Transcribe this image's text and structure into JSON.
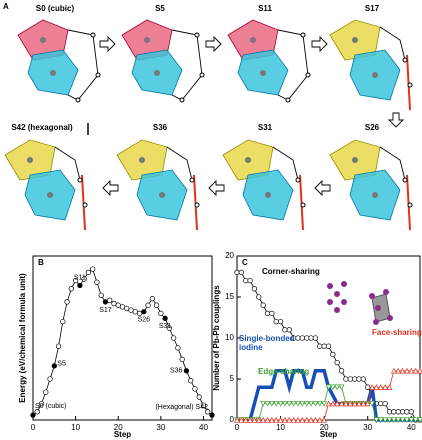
{
  "panel_a": {
    "label": "A",
    "states": [
      "S0 (cubic)",
      "S5",
      "S11",
      "S17",
      "S42 (hexagonal)",
      "S36",
      "S31",
      "S26"
    ]
  },
  "chart_data": [
    {
      "type": "line",
      "panel": "B",
      "xlabel": "Step",
      "ylabel": "Energy (eV/chemical formula unit)",
      "x": [
        0,
        1,
        2,
        3,
        4,
        5,
        6,
        7,
        8,
        9,
        10,
        11,
        12,
        13,
        14,
        15,
        16,
        17,
        18,
        19,
        20,
        21,
        22,
        23,
        24,
        25,
        26,
        27,
        28,
        29,
        30,
        31,
        32,
        33,
        34,
        35,
        36,
        37,
        38,
        39,
        40,
        41,
        42
      ],
      "values": [
        0.03,
        0.05,
        0.1,
        0.17,
        0.25,
        0.33,
        0.45,
        0.6,
        0.72,
        0.8,
        0.85,
        0.82,
        0.86,
        0.9,
        0.92,
        0.84,
        0.76,
        0.72,
        0.73,
        0.71,
        0.7,
        0.69,
        0.68,
        0.67,
        0.66,
        0.65,
        0.66,
        0.7,
        0.74,
        0.7,
        0.65,
        0.62,
        0.56,
        0.5,
        0.44,
        0.37,
        0.3,
        0.24,
        0.19,
        0.14,
        0.09,
        0.05,
        0.03
      ],
      "color": "#000000",
      "xlim": [
        0,
        42
      ],
      "xticks": [
        0,
        10,
        20,
        30,
        40
      ],
      "ylim": [
        0,
        1
      ],
      "annotations": [
        {
          "text": "S0 (cubic)",
          "x": 0
        },
        {
          "text": "S5",
          "x": 5
        },
        {
          "text": "S11",
          "x": 11
        },
        {
          "text": "S17",
          "x": 17
        },
        {
          "text": "S26",
          "x": 26
        },
        {
          "text": "S31",
          "x": 31
        },
        {
          "text": "S36",
          "x": 36
        },
        {
          "text": "(Hexagonal) S42",
          "x": 42
        }
      ]
    },
    {
      "type": "line",
      "panel": "C",
      "xlabel": "Step",
      "ylabel": "Number of Pb-Pb couplings",
      "x": [
        0,
        1,
        2,
        3,
        4,
        5,
        6,
        7,
        8,
        9,
        10,
        11,
        12,
        13,
        14,
        15,
        16,
        17,
        18,
        19,
        20,
        21,
        22,
        23,
        24,
        25,
        26,
        27,
        28,
        29,
        30,
        31,
        32,
        33,
        34,
        35,
        36,
        37,
        38,
        39,
        40,
        41,
        42
      ],
      "xlim": [
        0,
        42
      ],
      "xticks": [
        0,
        10,
        20,
        30,
        40
      ],
      "ylim": [
        0,
        20
      ],
      "yticks": [
        0,
        5,
        10,
        15,
        20
      ],
      "series": [
        {
          "name": "Corner-sharing",
          "color": "#000000",
          "marker": "circle",
          "values": [
            18,
            18,
            17,
            17,
            16,
            15,
            14,
            13,
            13,
            12,
            12,
            11,
            11,
            10,
            10,
            10,
            10,
            10,
            10,
            9,
            9,
            9,
            8,
            7,
            6,
            5,
            5,
            5,
            5,
            5,
            4,
            3,
            2,
            2,
            2,
            1,
            1,
            1,
            1,
            1,
            1,
            0,
            0
          ]
        },
        {
          "name": "Single-bonded iodine",
          "color": "#1550b8",
          "marker": "none",
          "values": [
            0,
            0,
            0,
            0,
            2,
            4,
            4,
            4,
            4,
            6,
            6,
            6,
            4,
            6,
            6,
            6,
            4,
            4,
            6,
            6,
            6,
            4,
            3,
            2,
            2,
            2,
            2,
            2,
            2,
            2,
            2,
            4,
            0,
            0,
            0,
            0,
            0,
            0,
            0,
            0,
            0,
            0,
            0
          ]
        },
        {
          "name": "Edge-sharing",
          "color": "#3aa02a",
          "marker": "triangle-down",
          "values": [
            0,
            0,
            0,
            0,
            0,
            0,
            2,
            2,
            2,
            2,
            2,
            2,
            2,
            2,
            2,
            2,
            2,
            2,
            2,
            2,
            2,
            4,
            4,
            4,
            4,
            2,
            2,
            2,
            2,
            2,
            2,
            2,
            0,
            0,
            0,
            0,
            0,
            0,
            0,
            0,
            0,
            0,
            0
          ]
        },
        {
          "name": "Face-sharing",
          "color": "#e0301e",
          "marker": "triangle-up",
          "values": [
            0,
            0,
            0,
            0,
            0,
            0,
            0,
            0,
            0,
            0,
            0,
            0,
            0,
            0,
            0,
            0,
            0,
            0,
            0,
            0,
            0,
            2,
            2,
            2,
            2,
            2,
            2,
            2,
            2,
            2,
            2,
            4,
            4,
            4,
            4,
            4,
            6,
            6,
            6,
            6,
            6,
            6,
            6
          ]
        }
      ]
    }
  ]
}
